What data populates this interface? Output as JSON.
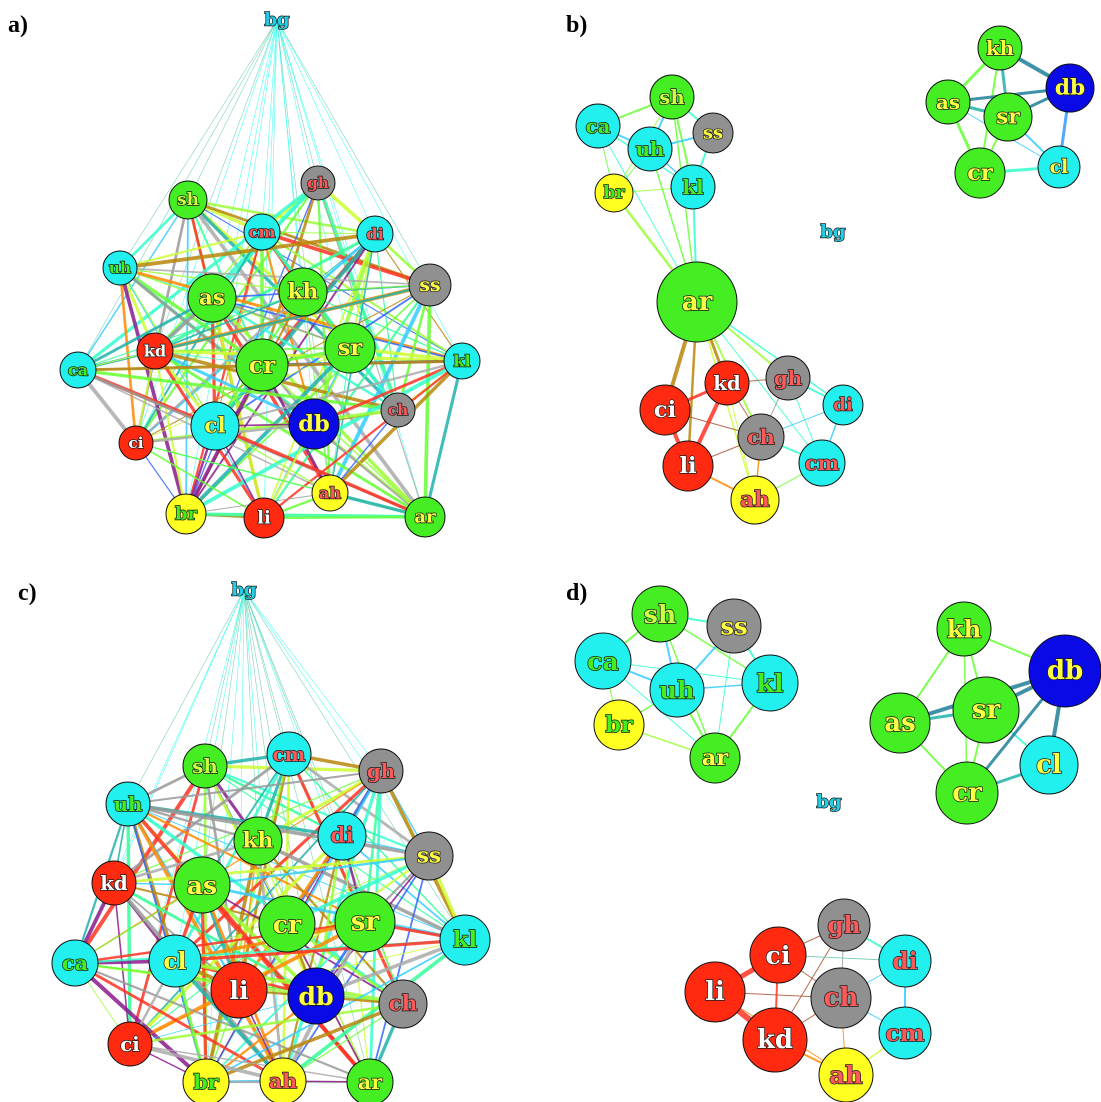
{
  "figure": {
    "panels": [
      {
        "label": "a)",
        "nodes": [
          {
            "id": "bg",
            "text": "bg",
            "color": "#22cfe6",
            "label_color": "#22cfe6",
            "small": true
          },
          {
            "id": "sh",
            "text": "sh",
            "color": "#44ee22",
            "label_color": "#ccff44"
          },
          {
            "id": "gh",
            "text": "gh",
            "color": "#909090",
            "label_color": "#ff5a5a"
          },
          {
            "id": "cm",
            "text": "cm",
            "color": "#22f0ee",
            "label_color": "#ff5a5a"
          },
          {
            "id": "di",
            "text": "di",
            "color": "#22f0ee",
            "label_color": "#ff5a5a"
          },
          {
            "id": "uh",
            "text": "uh",
            "color": "#22f0ee",
            "label_color": "#44ee22"
          },
          {
            "id": "as",
            "text": "as",
            "color": "#44ee22",
            "label_color": "#ffff44"
          },
          {
            "id": "kh",
            "text": "kh",
            "color": "#44ee22",
            "label_color": "#ffff44"
          },
          {
            "id": "ss",
            "text": "ss",
            "color": "#909090",
            "label_color": "#ffff44"
          },
          {
            "id": "kd",
            "text": "kd",
            "color": "#ff2a10",
            "label_color": "#ffffff"
          },
          {
            "id": "cr",
            "text": "cr",
            "color": "#44ee22",
            "label_color": "#ffff44"
          },
          {
            "id": "sr",
            "text": "sr",
            "color": "#44ee22",
            "label_color": "#ffff44"
          },
          {
            "id": "ca",
            "text": "ca",
            "color": "#22f0ee",
            "label_color": "#44ee22"
          },
          {
            "id": "kl",
            "text": "kl",
            "color": "#22f0ee",
            "label_color": "#44ee22"
          },
          {
            "id": "ch",
            "text": "ch",
            "color": "#909090",
            "label_color": "#ff5a5a"
          },
          {
            "id": "cl",
            "text": "cl",
            "color": "#22f0ee",
            "label_color": "#ffff44"
          },
          {
            "id": "db",
            "text": "db",
            "color": "#0a0ae6",
            "label_color": "#ffff44"
          },
          {
            "id": "ci",
            "text": "ci",
            "color": "#ff2a10",
            "label_color": "#ffffff"
          },
          {
            "id": "ah",
            "text": "ah",
            "color": "#ffff22",
            "label_color": "#ff5a5a"
          },
          {
            "id": "br",
            "text": "br",
            "color": "#ffff22",
            "label_color": "#44ee22"
          },
          {
            "id": "li",
            "text": "li",
            "color": "#ff2a10",
            "label_color": "#ffffff"
          },
          {
            "id": "ar",
            "text": "ar",
            "color": "#44ee22",
            "label_color": "#ffff44"
          }
        ]
      },
      {
        "label": "b)",
        "nodes": [
          {
            "id": "sh",
            "text": "sh",
            "color": "#44ee22",
            "label_color": "#ccff44"
          },
          {
            "id": "kh",
            "text": "kh",
            "color": "#44ee22",
            "label_color": "#ffff44"
          },
          {
            "id": "ca",
            "text": "ca",
            "color": "#22f0ee",
            "label_color": "#44ee22"
          },
          {
            "id": "ss",
            "text": "ss",
            "color": "#909090",
            "label_color": "#ffff44"
          },
          {
            "id": "uh",
            "text": "uh",
            "color": "#22f0ee",
            "label_color": "#44ee22"
          },
          {
            "id": "as",
            "text": "as",
            "color": "#44ee22",
            "label_color": "#ffff44"
          },
          {
            "id": "db",
            "text": "db",
            "color": "#0a0ae6",
            "label_color": "#ffff44"
          },
          {
            "id": "sr",
            "text": "sr",
            "color": "#44ee22",
            "label_color": "#ffff44"
          },
          {
            "id": "br",
            "text": "br",
            "color": "#ffff22",
            "label_color": "#44ee22"
          },
          {
            "id": "kl",
            "text": "kl",
            "color": "#22f0ee",
            "label_color": "#44ee22"
          },
          {
            "id": "cr",
            "text": "cr",
            "color": "#44ee22",
            "label_color": "#ffff44"
          },
          {
            "id": "cl",
            "text": "cl",
            "color": "#22f0ee",
            "label_color": "#ffff44"
          },
          {
            "id": "bg",
            "text": "bg",
            "color": "#22cfe6",
            "label_color": "#22cfe6",
            "small": true
          },
          {
            "id": "ar",
            "text": "ar",
            "color": "#44ee22",
            "label_color": "#ffff44"
          },
          {
            "id": "kd",
            "text": "kd",
            "color": "#ff2a10",
            "label_color": "#ffffff"
          },
          {
            "id": "gh",
            "text": "gh",
            "color": "#909090",
            "label_color": "#ff5a5a"
          },
          {
            "id": "ci",
            "text": "ci",
            "color": "#ff2a10",
            "label_color": "#ffffff"
          },
          {
            "id": "di",
            "text": "di",
            "color": "#22f0ee",
            "label_color": "#ff5a5a"
          },
          {
            "id": "ch",
            "text": "ch",
            "color": "#909090",
            "label_color": "#ff5a5a"
          },
          {
            "id": "li",
            "text": "li",
            "color": "#ff2a10",
            "label_color": "#ffffff"
          },
          {
            "id": "cm",
            "text": "cm",
            "color": "#22f0ee",
            "label_color": "#ff5a5a"
          },
          {
            "id": "ah",
            "text": "ah",
            "color": "#ffff22",
            "label_color": "#ff5a5a"
          }
        ]
      },
      {
        "label": "c)",
        "nodes": [
          {
            "id": "bg",
            "text": "bg",
            "color": "#22cfe6",
            "label_color": "#22cfe6",
            "small": true
          },
          {
            "id": "sh",
            "text": "sh",
            "color": "#44ee22",
            "label_color": "#ccff44"
          },
          {
            "id": "cm",
            "text": "cm",
            "color": "#22f0ee",
            "label_color": "#ff5a5a"
          },
          {
            "id": "gh",
            "text": "gh",
            "color": "#909090",
            "label_color": "#ff5a5a"
          },
          {
            "id": "uh",
            "text": "uh",
            "color": "#22f0ee",
            "label_color": "#44ee22"
          },
          {
            "id": "kh",
            "text": "kh",
            "color": "#44ee22",
            "label_color": "#ffff44"
          },
          {
            "id": "di",
            "text": "di",
            "color": "#22f0ee",
            "label_color": "#ff5a5a"
          },
          {
            "id": "ss",
            "text": "ss",
            "color": "#909090",
            "label_color": "#ffff44"
          },
          {
            "id": "kd",
            "text": "kd",
            "color": "#ff2a10",
            "label_color": "#ffffff"
          },
          {
            "id": "as",
            "text": "as",
            "color": "#44ee22",
            "label_color": "#ffff44"
          },
          {
            "id": "cr",
            "text": "cr",
            "color": "#44ee22",
            "label_color": "#ffff44"
          },
          {
            "id": "sr",
            "text": "sr",
            "color": "#44ee22",
            "label_color": "#ffff44"
          },
          {
            "id": "ca",
            "text": "ca",
            "color": "#22f0ee",
            "label_color": "#44ee22"
          },
          {
            "id": "cl",
            "text": "cl",
            "color": "#22f0ee",
            "label_color": "#ffff44"
          },
          {
            "id": "kl",
            "text": "kl",
            "color": "#22f0ee",
            "label_color": "#44ee22"
          },
          {
            "id": "li",
            "text": "li",
            "color": "#ff2a10",
            "label_color": "#ffffff"
          },
          {
            "id": "db",
            "text": "db",
            "color": "#0a0ae6",
            "label_color": "#ffff44"
          },
          {
            "id": "ch",
            "text": "ch",
            "color": "#909090",
            "label_color": "#ff5a5a"
          },
          {
            "id": "ci",
            "text": "ci",
            "color": "#ff2a10",
            "label_color": "#ffffff"
          },
          {
            "id": "br",
            "text": "br",
            "color": "#ffff22",
            "label_color": "#44ee22"
          },
          {
            "id": "ah",
            "text": "ah",
            "color": "#ffff22",
            "label_color": "#ff5a5a"
          },
          {
            "id": "ar",
            "text": "ar",
            "color": "#44ee22",
            "label_color": "#ffff44"
          }
        ]
      },
      {
        "label": "d)",
        "nodes": [
          {
            "id": "sh",
            "text": "sh",
            "color": "#44ee22",
            "label_color": "#ccff44"
          },
          {
            "id": "ss",
            "text": "ss",
            "color": "#909090",
            "label_color": "#ffff44"
          },
          {
            "id": "kh",
            "text": "kh",
            "color": "#44ee22",
            "label_color": "#ffff44"
          },
          {
            "id": "ca",
            "text": "ca",
            "color": "#22f0ee",
            "label_color": "#44ee22"
          },
          {
            "id": "db",
            "text": "db",
            "color": "#0a0ae6",
            "label_color": "#ffff44"
          },
          {
            "id": "uh",
            "text": "uh",
            "color": "#22f0ee",
            "label_color": "#44ee22"
          },
          {
            "id": "kl",
            "text": "kl",
            "color": "#22f0ee",
            "label_color": "#44ee22"
          },
          {
            "id": "br",
            "text": "br",
            "color": "#ffff22",
            "label_color": "#44ee22"
          },
          {
            "id": "sr",
            "text": "sr",
            "color": "#44ee22",
            "label_color": "#ffff44"
          },
          {
            "id": "as",
            "text": "as",
            "color": "#44ee22",
            "label_color": "#ffff44"
          },
          {
            "id": "ar",
            "text": "ar",
            "color": "#44ee22",
            "label_color": "#ffff44"
          },
          {
            "id": "cl",
            "text": "cl",
            "color": "#22f0ee",
            "label_color": "#ffff44"
          },
          {
            "id": "cr",
            "text": "cr",
            "color": "#44ee22",
            "label_color": "#ffff44"
          },
          {
            "id": "bg",
            "text": "bg",
            "color": "#22cfe6",
            "label_color": "#22cfe6",
            "small": true
          },
          {
            "id": "gh",
            "text": "gh",
            "color": "#909090",
            "label_color": "#ff5a5a"
          },
          {
            "id": "ci",
            "text": "ci",
            "color": "#ff2a10",
            "label_color": "#ffffff"
          },
          {
            "id": "di",
            "text": "di",
            "color": "#22f0ee",
            "label_color": "#ff5a5a"
          },
          {
            "id": "li",
            "text": "li",
            "color": "#ff2a10",
            "label_color": "#ffffff"
          },
          {
            "id": "ch",
            "text": "ch",
            "color": "#909090",
            "label_color": "#ff5a5a"
          },
          {
            "id": "kd",
            "text": "kd",
            "color": "#ff2a10",
            "label_color": "#ffffff"
          },
          {
            "id": "cm",
            "text": "cm",
            "color": "#22f0ee",
            "label_color": "#ff5a5a"
          },
          {
            "id": "ah",
            "text": "ah",
            "color": "#ffff22",
            "label_color": "#ff5a5a"
          }
        ]
      }
    ]
  }
}
